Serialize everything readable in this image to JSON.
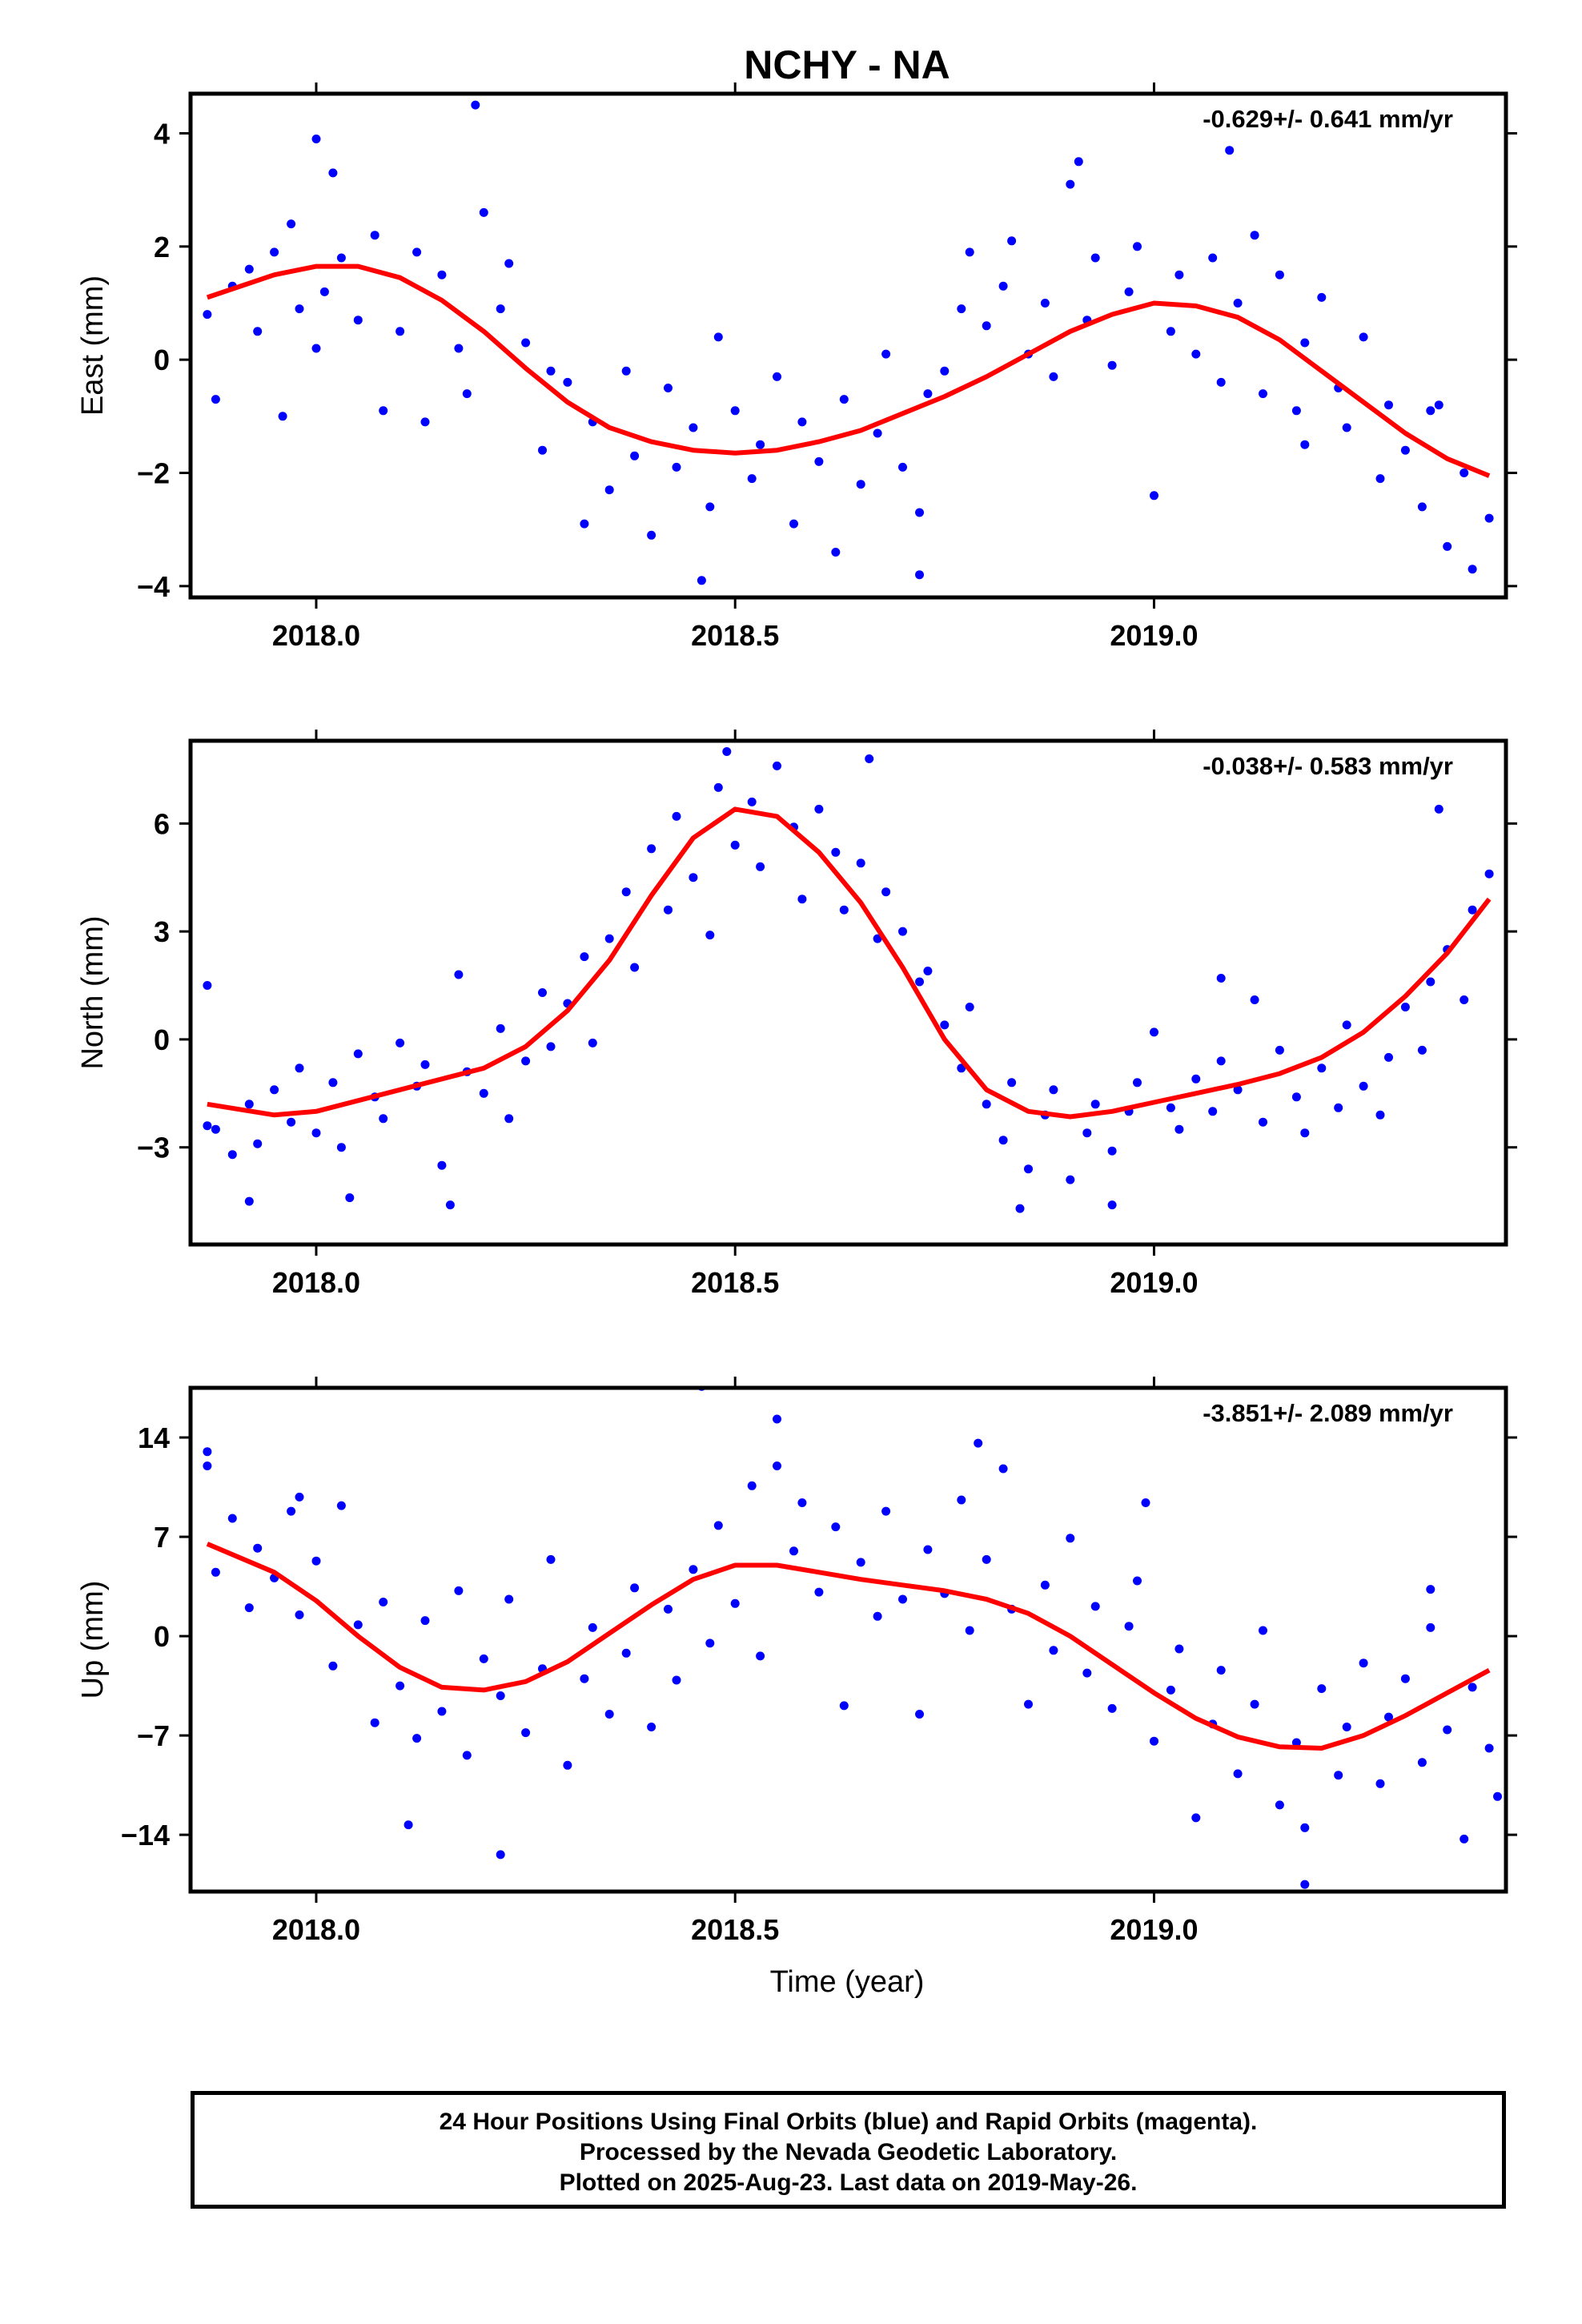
{
  "title": "NCHY - NA",
  "xlabel": "Time (year)",
  "colors": {
    "final_orbits": "#0000ff",
    "fit": "#ff0000",
    "frame": "#000000"
  },
  "footer": {
    "line1": "24 Hour Positions Using Final Orbits (blue) and Rapid Orbits (magenta).",
    "line2": "Processed by the Nevada Geodetic Laboratory.",
    "line3": "Plotted on 2025-Aug-23. Last data on 2019-May-26."
  },
  "chart_data": [
    {
      "type": "scatter",
      "component": "east",
      "ylabel": "East (mm)",
      "rate": "-0.629+/- 0.641 mm/yr",
      "xlim": [
        2017.85,
        2019.42
      ],
      "ylim": [
        -4.2,
        4.7
      ],
      "xticks": [
        2018.0,
        2018.5,
        2019.0
      ],
      "xtick_labels": [
        "2018.0",
        "2018.5",
        "2019.0"
      ],
      "yticks": [
        -4,
        -2,
        0,
        2,
        4
      ],
      "ytick_labels": [
        "−4",
        "−2",
        "0",
        "2",
        "4"
      ],
      "fit": {
        "x": [
          2017.87,
          2017.95,
          2018.0,
          2018.05,
          2018.1,
          2018.15,
          2018.2,
          2018.25,
          2018.3,
          2018.35,
          2018.4,
          2018.45,
          2018.5,
          2018.55,
          2018.6,
          2018.65,
          2018.7,
          2018.75,
          2018.8,
          2018.85,
          2018.9,
          2018.95,
          2019.0,
          2019.05,
          2019.1,
          2019.15,
          2019.2,
          2019.25,
          2019.3,
          2019.35,
          2019.4
        ],
        "y": [
          1.1,
          1.5,
          1.65,
          1.65,
          1.45,
          1.05,
          0.5,
          -0.15,
          -0.75,
          -1.2,
          -1.45,
          -1.6,
          -1.65,
          -1.6,
          -1.45,
          -1.25,
          -0.95,
          -0.65,
          -0.3,
          0.1,
          0.5,
          0.8,
          1.0,
          0.95,
          0.75,
          0.35,
          -0.2,
          -0.75,
          -1.3,
          -1.75,
          -2.05
        ]
      },
      "points": {
        "x": [
          2017.87,
          2017.88,
          2017.9,
          2017.92,
          2017.93,
          2017.95,
          2017.97,
          2017.98,
          2018.0,
          2018.01,
          2018.02,
          2018.03,
          2018.05,
          2018.07,
          2018.08,
          2018.1,
          2018.12,
          2018.13,
          2018.15,
          2018.17,
          2018.18,
          2018.2,
          2018.22,
          2018.23,
          2018.25,
          2018.27,
          2018.28,
          2018.3,
          2018.32,
          2018.33,
          2018.35,
          2018.37,
          2018.38,
          2018.4,
          2018.42,
          2018.43,
          2018.45,
          2018.47,
          2018.48,
          2018.5,
          2018.52,
          2018.53,
          2018.55,
          2018.57,
          2018.58,
          2018.6,
          2018.62,
          2018.63,
          2018.65,
          2018.67,
          2018.68,
          2018.7,
          2018.72,
          2018.73,
          2018.75,
          2018.77,
          2018.78,
          2018.8,
          2018.82,
          2018.83,
          2018.85,
          2018.87,
          2018.88,
          2018.9,
          2018.92,
          2018.93,
          2018.95,
          2018.97,
          2018.98,
          2019.0,
          2019.02,
          2019.03,
          2019.05,
          2019.07,
          2019.08,
          2019.1,
          2019.12,
          2019.13,
          2019.15,
          2019.17,
          2019.18,
          2019.2,
          2019.22,
          2019.23,
          2019.25,
          2019.27,
          2019.28,
          2019.3,
          2019.32,
          2019.33,
          2019.35,
          2019.37,
          2019.38,
          2019.4,
          2017.96,
          2018.0,
          2018.19,
          2018.46,
          2018.72,
          2018.91,
          2019.09,
          2019.18,
          2019.34
        ],
        "y": [
          0.8,
          -0.7,
          1.3,
          1.6,
          0.5,
          1.9,
          2.4,
          0.9,
          3.9,
          1.2,
          3.3,
          1.8,
          0.7,
          2.2,
          -0.9,
          0.5,
          1.9,
          -1.1,
          1.5,
          0.2,
          -0.6,
          2.6,
          0.9,
          1.7,
          0.3,
          -1.6,
          -0.2,
          -0.4,
          -2.9,
          -1.1,
          -2.3,
          -0.2,
          -1.7,
          -3.1,
          -0.5,
          -1.9,
          -1.2,
          -2.6,
          0.4,
          -0.9,
          -2.1,
          -1.5,
          -0.3,
          -2.9,
          -1.1,
          -1.8,
          -3.4,
          -0.7,
          -2.2,
          -1.3,
          0.1,
          -1.9,
          -2.7,
          -0.6,
          -0.2,
          0.9,
          1.9,
          0.6,
          1.3,
          2.1,
          0.1,
          1.0,
          -0.3,
          3.1,
          0.7,
          1.8,
          -0.1,
          1.2,
          2.0,
          -2.4,
          0.5,
          1.5,
          0.1,
          1.8,
          -0.4,
          1.0,
          2.2,
          -0.6,
          1.5,
          -0.9,
          0.3,
          1.1,
          -0.5,
          -1.2,
          0.4,
          -2.1,
          -0.8,
          -1.6,
          -2.6,
          -0.9,
          -3.3,
          -2.0,
          -3.7,
          -2.8,
          -1.0,
          0.2,
          4.5,
          -3.9,
          -3.8,
          3.5,
          3.7,
          -1.5,
          -0.8
        ]
      }
    },
    {
      "type": "scatter",
      "component": "north",
      "ylabel": "North (mm)",
      "rate": "-0.038+/- 0.583 mm/yr",
      "xlim": [
        2017.85,
        2019.42
      ],
      "ylim": [
        -5.7,
        8.3
      ],
      "xticks": [
        2018.0,
        2018.5,
        2019.0
      ],
      "xtick_labels": [
        "2018.0",
        "2018.5",
        "2019.0"
      ],
      "yticks": [
        -3,
        0,
        3,
        6
      ],
      "ytick_labels": [
        "−3",
        "0",
        "3",
        "6"
      ],
      "fit": {
        "x": [
          2017.87,
          2017.95,
          2018.0,
          2018.05,
          2018.1,
          2018.15,
          2018.2,
          2018.25,
          2018.3,
          2018.35,
          2018.4,
          2018.45,
          2018.5,
          2018.55,
          2018.6,
          2018.65,
          2018.7,
          2018.75,
          2018.8,
          2018.85,
          2018.9,
          2018.95,
          2019.0,
          2019.05,
          2019.1,
          2019.15,
          2019.2,
          2019.25,
          2019.3,
          2019.35,
          2019.4
        ],
        "y": [
          -1.8,
          -2.1,
          -2.0,
          -1.7,
          -1.4,
          -1.1,
          -0.8,
          -0.2,
          0.8,
          2.2,
          4.0,
          5.6,
          6.4,
          6.2,
          5.2,
          3.8,
          2.0,
          0.0,
          -1.4,
          -2.0,
          -2.15,
          -2.0,
          -1.75,
          -1.5,
          -1.25,
          -0.95,
          -0.5,
          0.2,
          1.2,
          2.4,
          3.9
        ]
      },
      "points": {
        "x": [
          2017.87,
          2017.88,
          2017.9,
          2017.92,
          2017.93,
          2017.95,
          2017.97,
          2017.98,
          2018.0,
          2018.02,
          2018.03,
          2018.05,
          2018.07,
          2018.08,
          2018.1,
          2018.12,
          2018.13,
          2018.15,
          2018.17,
          2018.18,
          2018.2,
          2018.22,
          2018.23,
          2018.25,
          2018.27,
          2018.28,
          2018.3,
          2018.32,
          2018.33,
          2018.35,
          2018.37,
          2018.38,
          2018.4,
          2018.42,
          2018.43,
          2018.45,
          2018.47,
          2018.48,
          2018.5,
          2018.52,
          2018.53,
          2018.55,
          2018.57,
          2018.58,
          2018.6,
          2018.62,
          2018.63,
          2018.65,
          2018.67,
          2018.68,
          2018.7,
          2018.72,
          2018.73,
          2018.75,
          2018.77,
          2018.78,
          2018.8,
          2018.82,
          2018.83,
          2018.85,
          2018.87,
          2018.88,
          2018.9,
          2018.92,
          2018.93,
          2018.95,
          2018.97,
          2018.98,
          2019.0,
          2019.02,
          2019.03,
          2019.05,
          2019.07,
          2019.08,
          2019.1,
          2019.12,
          2019.13,
          2019.15,
          2019.17,
          2019.18,
          2019.2,
          2019.22,
          2019.23,
          2019.25,
          2019.27,
          2019.28,
          2019.3,
          2019.32,
          2019.33,
          2019.35,
          2019.37,
          2019.38,
          2019.4,
          2017.87,
          2017.92,
          2018.04,
          2018.16,
          2018.49,
          2018.66,
          2018.84,
          2018.95,
          2019.08,
          2019.34
        ],
        "y": [
          1.5,
          -2.5,
          -3.2,
          -1.8,
          -2.9,
          -1.4,
          -2.3,
          -0.8,
          -2.6,
          -1.2,
          -3.0,
          -0.4,
          -1.6,
          -2.2,
          -0.1,
          -1.3,
          -0.7,
          -3.5,
          1.8,
          -0.9,
          -1.5,
          0.3,
          -2.2,
          -0.6,
          1.3,
          -0.2,
          1.0,
          2.3,
          -0.1,
          2.8,
          4.1,
          2.0,
          5.3,
          3.6,
          6.2,
          4.5,
          2.9,
          7.0,
          5.4,
          6.6,
          4.8,
          7.6,
          5.9,
          3.9,
          6.4,
          5.2,
          3.6,
          4.9,
          2.8,
          4.1,
          3.0,
          1.6,
          1.9,
          0.4,
          -0.8,
          0.9,
          -1.8,
          -2.8,
          -1.2,
          -3.6,
          -2.1,
          -1.4,
          -3.9,
          -2.6,
          -1.8,
          -3.1,
          -2.0,
          -1.2,
          0.2,
          -1.9,
          -2.5,
          -1.1,
          -2.0,
          -0.6,
          -1.4,
          1.1,
          -2.3,
          -0.3,
          -1.6,
          -2.6,
          -0.8,
          -1.9,
          0.4,
          -1.3,
          -2.1,
          -0.5,
          0.9,
          -0.3,
          1.6,
          2.5,
          1.1,
          3.6,
          4.6,
          -2.4,
          -4.5,
          -4.4,
          -4.6,
          8.0,
          7.8,
          -4.7,
          -4.6,
          1.7,
          6.4
        ]
      }
    },
    {
      "type": "scatter",
      "component": "up",
      "ylabel": "Up (mm)",
      "rate": "-3.851+/- 2.089 mm/yr",
      "xlim": [
        2017.85,
        2019.42
      ],
      "ylim": [
        -18,
        17.5
      ],
      "xticks": [
        2018.0,
        2018.5,
        2019.0
      ],
      "xtick_labels": [
        "2018.0",
        "2018.5",
        "2019.0"
      ],
      "yticks": [
        -14,
        -7,
        0,
        7,
        14
      ],
      "ytick_labels": [
        "−14",
        "−7",
        "0",
        "7",
        "14"
      ],
      "fit": {
        "x": [
          2017.87,
          2017.95,
          2018.0,
          2018.05,
          2018.1,
          2018.15,
          2018.2,
          2018.25,
          2018.3,
          2018.35,
          2018.4,
          2018.45,
          2018.5,
          2018.55,
          2018.6,
          2018.65,
          2018.7,
          2018.75,
          2018.8,
          2018.85,
          2018.9,
          2018.95,
          2019.0,
          2019.05,
          2019.1,
          2019.15,
          2019.2,
          2019.25,
          2019.3,
          2019.35,
          2019.4
        ],
        "y": [
          6.5,
          4.5,
          2.5,
          0.0,
          -2.2,
          -3.6,
          -3.8,
          -3.2,
          -1.8,
          0.2,
          2.2,
          4.0,
          5.0,
          5.0,
          4.5,
          4.0,
          3.6,
          3.2,
          2.6,
          1.6,
          0.0,
          -2.0,
          -4.0,
          -5.8,
          -7.1,
          -7.8,
          -7.9,
          -7.0,
          -5.6,
          -4.0,
          -2.4
        ]
      },
      "points": {
        "x": [
          2017.87,
          2017.88,
          2017.9,
          2017.92,
          2017.93,
          2017.95,
          2017.97,
          2017.98,
          2018.0,
          2018.02,
          2018.03,
          2018.05,
          2018.07,
          2018.08,
          2018.1,
          2018.12,
          2018.13,
          2018.15,
          2018.17,
          2018.18,
          2018.2,
          2018.22,
          2018.23,
          2018.25,
          2018.27,
          2018.28,
          2018.3,
          2018.32,
          2018.33,
          2018.35,
          2018.37,
          2018.38,
          2018.4,
          2018.42,
          2018.43,
          2018.45,
          2018.47,
          2018.48,
          2018.5,
          2018.52,
          2018.53,
          2018.55,
          2018.57,
          2018.58,
          2018.6,
          2018.62,
          2018.63,
          2018.65,
          2018.67,
          2018.68,
          2018.7,
          2018.72,
          2018.73,
          2018.75,
          2018.77,
          2018.78,
          2018.8,
          2018.82,
          2018.83,
          2018.85,
          2018.87,
          2018.88,
          2018.9,
          2018.92,
          2018.93,
          2018.95,
          2018.97,
          2018.98,
          2019.0,
          2019.02,
          2019.03,
          2019.05,
          2019.07,
          2019.08,
          2019.1,
          2019.12,
          2019.13,
          2019.15,
          2019.17,
          2019.18,
          2019.2,
          2019.22,
          2019.23,
          2019.25,
          2019.27,
          2019.28,
          2019.3,
          2019.32,
          2019.33,
          2019.35,
          2019.37,
          2019.38,
          2019.4,
          2017.87,
          2017.98,
          2018.11,
          2018.22,
          2018.46,
          2018.55,
          2018.79,
          2018.99,
          2019.18,
          2019.33,
          2019.41
        ],
        "y": [
          12.0,
          4.5,
          8.3,
          2.0,
          6.2,
          4.1,
          8.8,
          1.5,
          5.3,
          -2.1,
          9.2,
          0.8,
          -6.1,
          2.4,
          -3.5,
          -7.2,
          1.1,
          -5.3,
          3.2,
          -8.4,
          -1.6,
          -4.2,
          2.6,
          -6.8,
          -2.3,
          5.4,
          -9.1,
          -3.0,
          0.6,
          -5.5,
          -1.2,
          3.4,
          -6.4,
          1.9,
          -3.1,
          4.7,
          -0.5,
          7.8,
          2.3,
          10.6,
          -1.4,
          12.0,
          6.0,
          9.4,
          3.1,
          7.7,
          -4.9,
          5.2,
          1.4,
          8.8,
          2.6,
          -5.5,
          6.1,
          3.0,
          9.6,
          0.4,
          5.4,
          11.8,
          1.9,
          -4.8,
          3.6,
          -1.0,
          6.9,
          -2.6,
          2.1,
          -5.1,
          0.7,
          3.9,
          -7.4,
          -3.8,
          -0.9,
          -12.8,
          -6.2,
          -2.4,
          -9.7,
          -4.8,
          0.4,
          -11.9,
          -7.5,
          -13.5,
          -3.7,
          -9.8,
          -6.4,
          -1.9,
          -10.4,
          -5.7,
          -3.0,
          -8.9,
          0.6,
          -6.6,
          -14.3,
          -3.6,
          -7.9,
          13.0,
          9.8,
          -13.3,
          -15.4,
          17.6,
          15.3,
          13.6,
          9.4,
          -17.5,
          3.3,
          -11.3
        ]
      }
    }
  ]
}
